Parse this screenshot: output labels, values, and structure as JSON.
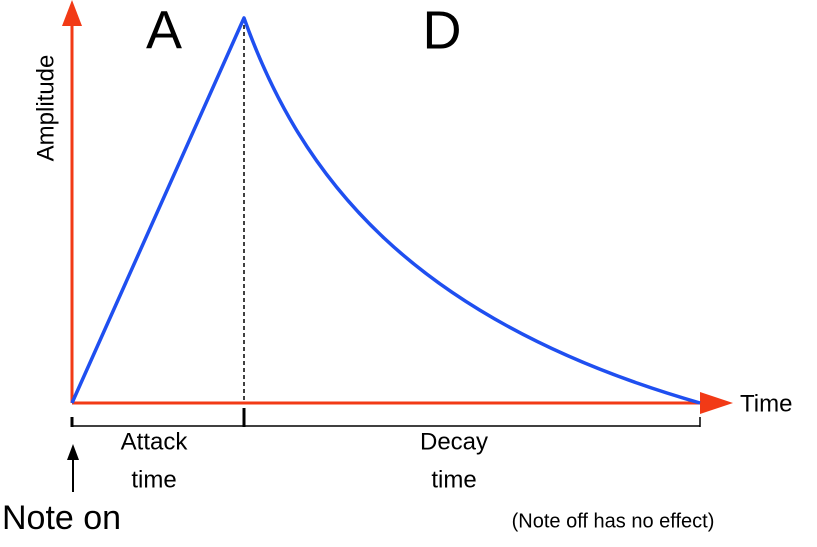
{
  "axes": {
    "y_label": "Amplitude",
    "x_label": "Time"
  },
  "phases": [
    {
      "letter": "A",
      "label": [
        "Attack",
        "time"
      ]
    },
    {
      "letter": "D",
      "label": [
        "Decay",
        "time"
      ]
    }
  ],
  "notes": {
    "note_on": "Note on",
    "note_off": "(Note off has no effect)"
  }
}
